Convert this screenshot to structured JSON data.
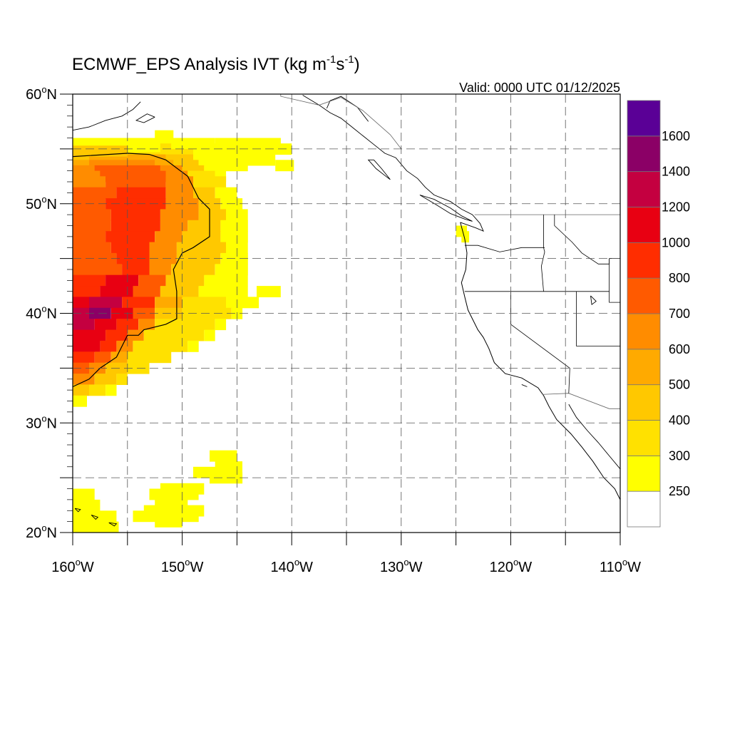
{
  "title": {
    "main": "ECMWF_EPS Analysis IVT (kg m",
    "exp1": "-1",
    "mid": "s",
    "exp2": "-1",
    "close": ")"
  },
  "valid_time": "Valid: 0000 UTC 01/12/2025",
  "map": {
    "region": "Northeast Pacific and western North America",
    "projection": "cylindrical equidistant",
    "lon_range": [
      -160,
      -110
    ],
    "lat_range": [
      20,
      60
    ],
    "gridlines": "dashed",
    "gridline_lons": [
      -155,
      -150,
      -145,
      -140,
      -135,
      -130,
      -125,
      -120,
      -115
    ],
    "gridline_lats": [
      25,
      30,
      35,
      40,
      45,
      50,
      55
    ],
    "x_ticks": [
      {
        "lon": -160,
        "num": "160",
        "sup": "o",
        "hem": "W"
      },
      {
        "lon": -150,
        "num": "150",
        "sup": "o",
        "hem": "W"
      },
      {
        "lon": -140,
        "num": "140",
        "sup": "o",
        "hem": "W"
      },
      {
        "lon": -130,
        "num": "130",
        "sup": "o",
        "hem": "W"
      },
      {
        "lon": -120,
        "num": "120",
        "sup": "o",
        "hem": "W"
      },
      {
        "lon": -110,
        "num": "110",
        "sup": "o",
        "hem": "W"
      }
    ],
    "y_ticks": [
      {
        "lat": 60,
        "num": "60",
        "sup": "o",
        "hem": "N"
      },
      {
        "lat": 50,
        "num": "50",
        "sup": "o",
        "hem": "N"
      },
      {
        "lat": 40,
        "num": "40",
        "sup": "o",
        "hem": "N"
      },
      {
        "lat": 30,
        "num": "30",
        "sup": "o",
        "hem": "N"
      },
      {
        "lat": 20,
        "num": "20",
        "sup": "o",
        "hem": "N"
      }
    ],
    "minor_ticks_every_deg": 1,
    "major_ticks_every_deg": 5,
    "contour_line": {
      "level": 700,
      "color": "#000000"
    }
  },
  "colorbar": {
    "labels": [
      "250",
      "300",
      "400",
      "500",
      "600",
      "700",
      "800",
      "1000",
      "1200",
      "1400",
      "1600"
    ],
    "colors": [
      "#ffffff",
      "#ffff00",
      "#ffe100",
      "#ffc800",
      "#ffaa00",
      "#ff8c00",
      "#ff5a00",
      "#ff2d00",
      "#e80012",
      "#c40040",
      "#8b0066",
      "#5a0096"
    ]
  }
}
